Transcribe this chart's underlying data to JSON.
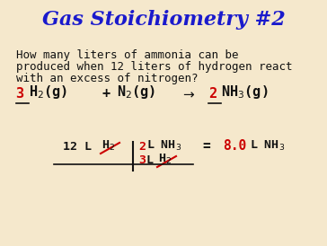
{
  "title": "Gas Stoichiometry #2",
  "title_color": "#1a1acc",
  "title_fontsize": 16,
  "background_color": "#f5e8cc",
  "question_line1": "How many liters of ammonia can be",
  "question_line2": "produced when 12 liters of hydrogen react",
  "question_line3": "with an excess of nitrogen?",
  "question_fontsize": 9.0,
  "black_color": "#111111",
  "red_color": "#cc0000"
}
